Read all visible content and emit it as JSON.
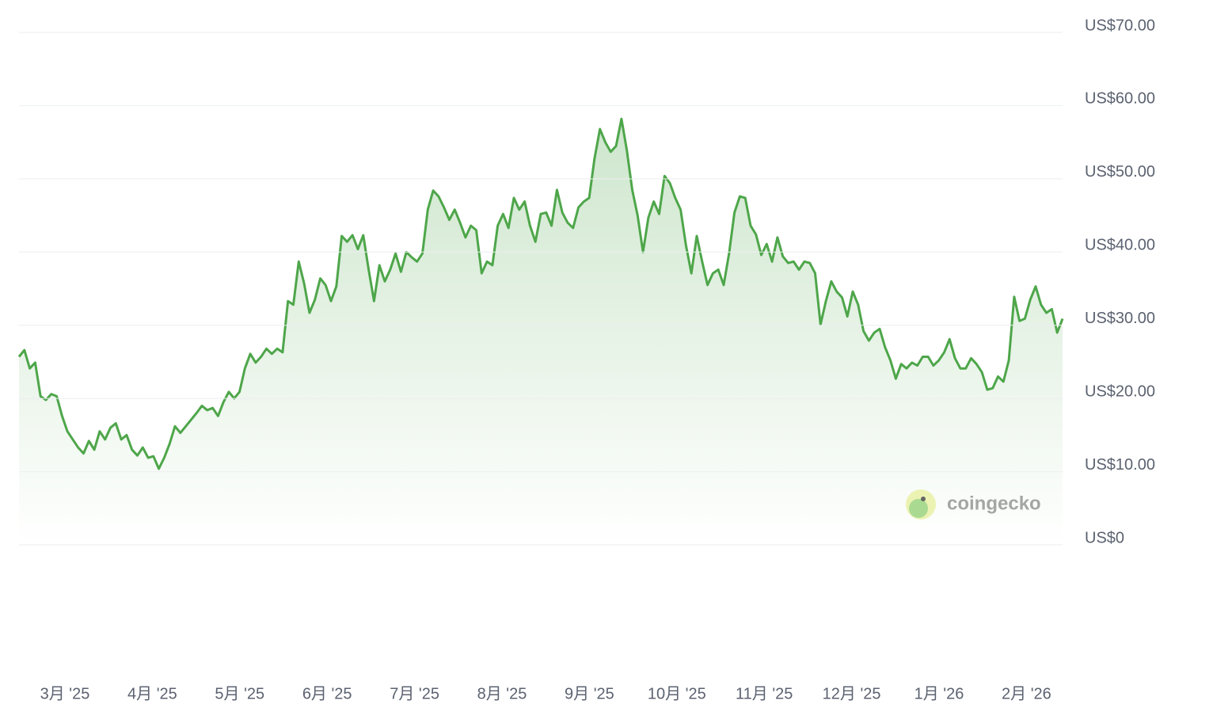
{
  "chart_data": {
    "type": "line",
    "watermark": "coingecko",
    "x_labels": [
      "3月 '25",
      "4月 '25",
      "5月 '25",
      "6月 '25",
      "7月 '25",
      "8月 '25",
      "9月 '25",
      "10月 '25",
      "11月 '25",
      "12月 '25",
      "1月 '26",
      "2月 '26"
    ],
    "series": [
      {
        "color": "#4ea64a",
        "values": [
          25.7,
          26.6,
          24.1,
          24.9,
          20.3,
          19.8,
          20.6,
          20.3,
          17.6,
          15.5,
          14.4,
          13.3,
          12.5,
          14.2,
          13.0,
          15.5,
          14.4,
          16.0,
          16.6,
          14.4,
          15.0,
          13.0,
          12.2,
          13.3,
          11.9,
          12.1,
          10.4,
          11.9,
          13.8,
          16.2,
          15.3,
          16.2,
          17.1,
          18.0,
          19.0,
          18.4,
          18.7,
          17.6,
          19.5,
          20.9,
          20.0,
          20.9,
          24.1,
          26.1,
          24.9,
          25.7,
          26.8,
          26.1,
          26.8,
          26.3,
          33.3,
          32.8,
          38.7,
          35.7,
          31.7,
          33.5,
          36.4,
          35.5,
          33.3,
          35.3,
          42.2,
          41.4,
          42.3,
          40.4,
          42.3,
          37.6,
          33.3,
          38.2,
          36.0,
          37.6,
          39.8,
          37.3,
          40.0,
          39.3,
          38.7,
          39.8,
          45.8,
          48.4,
          47.6,
          46.1,
          44.4,
          45.8,
          44.0,
          42.0,
          43.6,
          43.0,
          37.1,
          38.7,
          38.2,
          43.6,
          45.2,
          43.3,
          47.4,
          45.8,
          46.9,
          43.6,
          41.4,
          45.2,
          45.4,
          43.6,
          48.5,
          45.4,
          44.0,
          43.3,
          46.1,
          46.9,
          47.4,
          52.8,
          56.8,
          55.0,
          53.7,
          54.5,
          58.2,
          53.9,
          48.5,
          45.0,
          40.0,
          44.7,
          46.9,
          45.2,
          50.4,
          49.4,
          47.4,
          45.8,
          40.9,
          37.1,
          42.2,
          38.7,
          35.5,
          37.1,
          37.6,
          35.5,
          39.8,
          45.4,
          47.6,
          47.4,
          43.6,
          42.4,
          39.6,
          41.1,
          38.7,
          42.0,
          39.4,
          38.5,
          38.7,
          37.6,
          38.7,
          38.5,
          37.1,
          30.1,
          33.3,
          36.0,
          34.6,
          33.8,
          31.2,
          34.6,
          32.8,
          29.2,
          27.9,
          29.0,
          29.5,
          27.0,
          25.2,
          22.7,
          24.7,
          24.1,
          24.9,
          24.5,
          25.7,
          25.7,
          24.5,
          25.2,
          26.3,
          28.1,
          25.5,
          24.1,
          24.1,
          25.5,
          24.7,
          23.6,
          21.2,
          21.4,
          23.0,
          22.3,
          25.2,
          33.9,
          30.6,
          30.9,
          33.5,
          35.3,
          32.8,
          31.7,
          32.2,
          29.0,
          30.9
        ]
      }
    ],
    "ylim": [
      0,
      70
    ],
    "yticks": [
      {
        "value": 0,
        "label": "US$0"
      },
      {
        "value": 10,
        "label": "US$10.00"
      },
      {
        "value": 20,
        "label": "US$20.00"
      },
      {
        "value": 30,
        "label": "US$30.00"
      },
      {
        "value": 40,
        "label": "US$40.00"
      },
      {
        "value": 50,
        "label": "US$50.00"
      },
      {
        "value": 60,
        "label": "US$60.00"
      },
      {
        "value": 70,
        "label": "US$70.00"
      }
    ],
    "grid": true
  }
}
